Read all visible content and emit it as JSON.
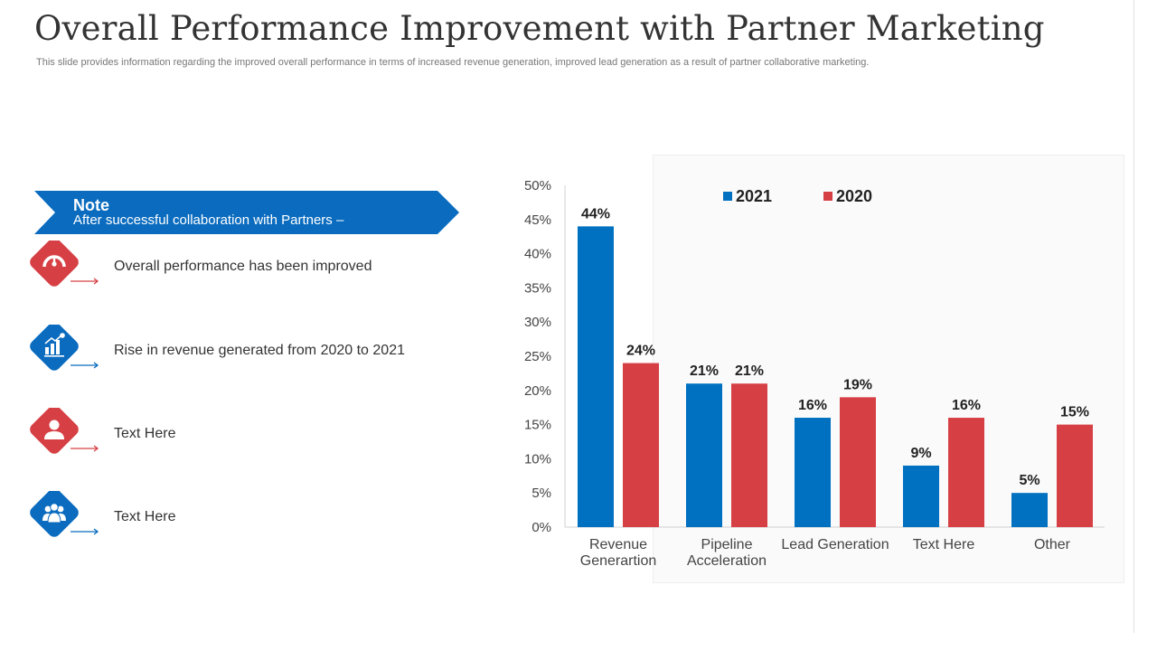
{
  "slide": {
    "title": "Overall Performance Improvement with Partner Marketing",
    "subtitle": "This slide provides information regarding the improved overall performance in terms of increased revenue generation, improved lead generation as a result of partner collaborative marketing."
  },
  "note": {
    "title": "Note",
    "text": "After successful collaboration with Partners –"
  },
  "features": [
    {
      "text": "Overall performance has been improved",
      "icon": "speedometer-icon",
      "color": "#D64045"
    },
    {
      "text": "Rise in revenue generated from 2020 to 2021",
      "icon": "growth-chart-icon",
      "color": "#0B6CBF"
    },
    {
      "text": "Text Here",
      "icon": "user-icon",
      "color": "#D64045"
    },
    {
      "text": "Text Here",
      "icon": "team-icon",
      "color": "#0B6CBF"
    }
  ],
  "colors": {
    "blue": "#0070C0",
    "red": "#D64045",
    "banner": "#0B6CBF"
  },
  "chart_data": {
    "type": "bar",
    "categories": [
      "Revenue Generartion",
      "Pipeline Acceleration",
      "Lead Generation",
      "Text Here",
      "Other"
    ],
    "category_lines": [
      [
        "Revenue",
        "Generartion"
      ],
      [
        "Pipeline",
        "Acceleration"
      ],
      [
        "Lead Generation"
      ],
      [
        "Text Here"
      ],
      [
        "Other"
      ]
    ],
    "series": [
      {
        "name": "2021",
        "values": [
          44,
          21,
          16,
          9,
          5
        ],
        "color": "#0070C0"
      },
      {
        "name": "2020",
        "values": [
          24,
          21,
          19,
          16,
          15
        ],
        "color": "#D64045"
      }
    ],
    "value_labels": [
      [
        "44%",
        "21%",
        "16%",
        "9%",
        "5%"
      ],
      [
        "24%",
        "21%",
        "19%",
        "16%",
        "15%"
      ]
    ],
    "ylim": [
      0,
      50
    ],
    "yticks": [
      "0%",
      "5%",
      "10%",
      "15%",
      "20%",
      "25%",
      "30%",
      "35%",
      "40%",
      "45%",
      "50%"
    ],
    "legend": "top",
    "title": "",
    "xlabel": "",
    "ylabel": ""
  }
}
